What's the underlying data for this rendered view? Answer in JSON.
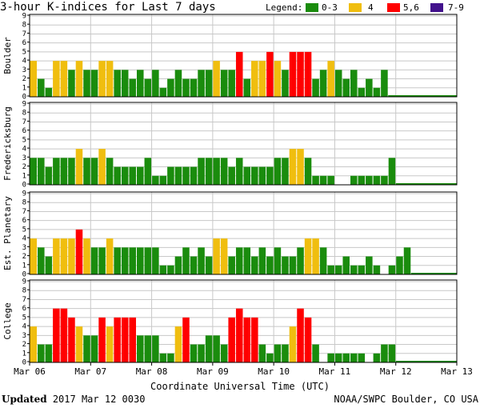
{
  "header": {
    "title": "3-hour K-indices for Last 7 days",
    "legend_title": "Legend:",
    "legend": [
      {
        "label": "0-3",
        "color": "#1a8c0d"
      },
      {
        "label": "4",
        "color": "#f0be0f"
      },
      {
        "label": "5,6",
        "color": "#ff0000"
      },
      {
        "label": "7-9",
        "color": "#42128c"
      }
    ]
  },
  "chart_data": [
    {
      "type": "bar",
      "ylabel": "Boulder",
      "ylim": [
        0,
        9
      ],
      "yticks": [
        "0",
        "1",
        "2",
        "3",
        "4",
        "5",
        "6",
        "7",
        "8",
        "9"
      ],
      "values": [
        4,
        2,
        1,
        4,
        4,
        3,
        4,
        3,
        3,
        4,
        4,
        3,
        3,
        2,
        3,
        2,
        3,
        1,
        2,
        3,
        2,
        2,
        3,
        3,
        4,
        3,
        3,
        5,
        2,
        4,
        4,
        5,
        4,
        3,
        5,
        5,
        5,
        2,
        3,
        4,
        3,
        2,
        3,
        1,
        2,
        1,
        3
      ]
    },
    {
      "type": "bar",
      "ylabel": "Fredericksburg",
      "ylim": [
        0,
        9
      ],
      "yticks": [
        "0",
        "1",
        "2",
        "3",
        "4",
        "5",
        "6",
        "7",
        "8",
        "9"
      ],
      "values": [
        3,
        3,
        2,
        3,
        3,
        3,
        4,
        3,
        3,
        4,
        3,
        2,
        2,
        2,
        2,
        3,
        1,
        1,
        2,
        2,
        2,
        2,
        3,
        3,
        3,
        3,
        2,
        3,
        2,
        2,
        2,
        2,
        3,
        3,
        4,
        4,
        3,
        1,
        1,
        1,
        0,
        0,
        1,
        1,
        1,
        1,
        1,
        3
      ]
    },
    {
      "type": "bar",
      "ylabel": "Est. Planetary",
      "ylim": [
        0,
        9
      ],
      "yticks": [
        "0",
        "1",
        "2",
        "3",
        "4",
        "5",
        "6",
        "7",
        "8",
        "9"
      ],
      "values": [
        4,
        3,
        2,
        4,
        4,
        4,
        5,
        4,
        3,
        3,
        4,
        3,
        3,
        3,
        3,
        3,
        3,
        1,
        1,
        2,
        3,
        2,
        3,
        2,
        4,
        4,
        2,
        3,
        3,
        2,
        3,
        2,
        3,
        2,
        2,
        3,
        4,
        4,
        3,
        1,
        1,
        2,
        1,
        1,
        2,
        1,
        0,
        1,
        2,
        3
      ]
    },
    {
      "type": "bar",
      "ylabel": "College",
      "ylim": [
        0,
        9
      ],
      "yticks": [
        "0",
        "1",
        "2",
        "3",
        "4",
        "5",
        "6",
        "7",
        "8",
        "9"
      ],
      "values": [
        4,
        2,
        2,
        6,
        6,
        5,
        4,
        3,
        3,
        5,
        4,
        5,
        5,
        5,
        3,
        3,
        3,
        1,
        1,
        4,
        5,
        2,
        2,
        3,
        3,
        2,
        5,
        6,
        5,
        5,
        2,
        1,
        2,
        2,
        4,
        6,
        5,
        2,
        0,
        1,
        1,
        1,
        1,
        1,
        0,
        1,
        2,
        2
      ]
    }
  ],
  "x_axis": {
    "title": "Coordinate Universal Time (UTC)",
    "ticks": [
      "Mar 06",
      "Mar 07",
      "Mar 08",
      "Mar 09",
      "Mar 10",
      "Mar 11",
      "Mar 12",
      "Mar 13"
    ]
  },
  "footer": {
    "updated_label": "Updated",
    "updated_value": "2017 Mar 12 0030",
    "credit": "NOAA/SWPC Boulder, CO USA"
  }
}
